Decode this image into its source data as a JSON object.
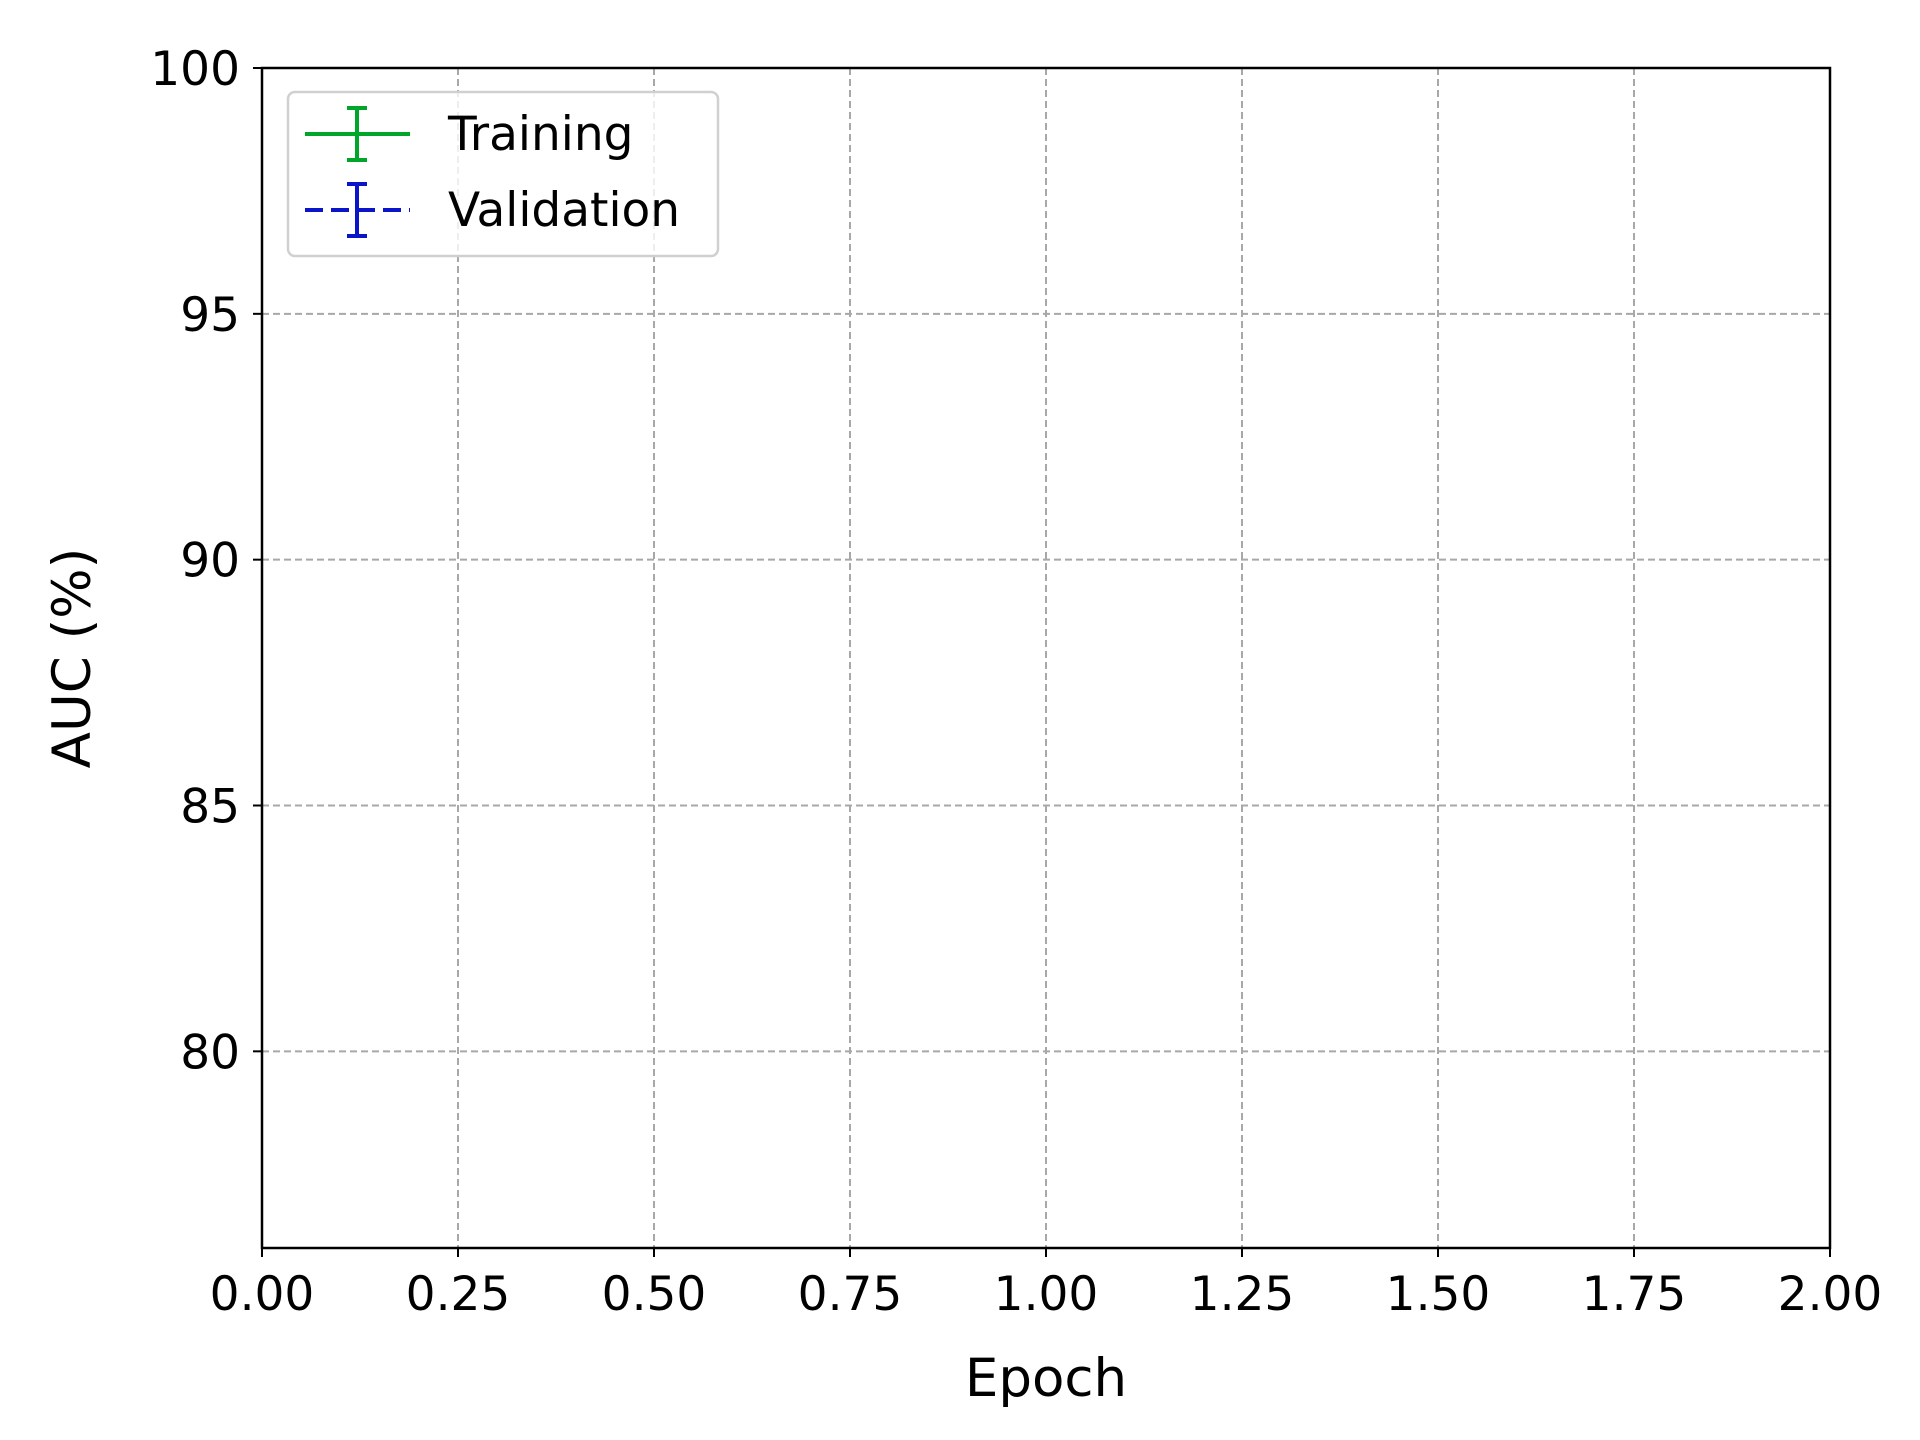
{
  "chart_data": {
    "type": "line",
    "title": "",
    "xlabel": "Epoch",
    "ylabel": "AUC (%)",
    "xlim": [
      0.0,
      2.0
    ],
    "ylim": [
      76.0,
      100.0
    ],
    "xticks": [
      "0.00",
      "0.25",
      "0.50",
      "0.75",
      "1.00",
      "1.25",
      "1.50",
      "1.75",
      "2.00"
    ],
    "yticks": [
      "80",
      "85",
      "90",
      "95",
      "100"
    ],
    "grid": true,
    "legend_position": "top-left",
    "error_bars": true,
    "series": [
      {
        "name": "Training",
        "color": "#00a62a",
        "line_style": "solid",
        "x": [],
        "y": [],
        "err": []
      },
      {
        "name": "Validation",
        "color": "#0a14c8",
        "line_style": "dashed",
        "x": [],
        "y": [],
        "err": []
      }
    ]
  }
}
